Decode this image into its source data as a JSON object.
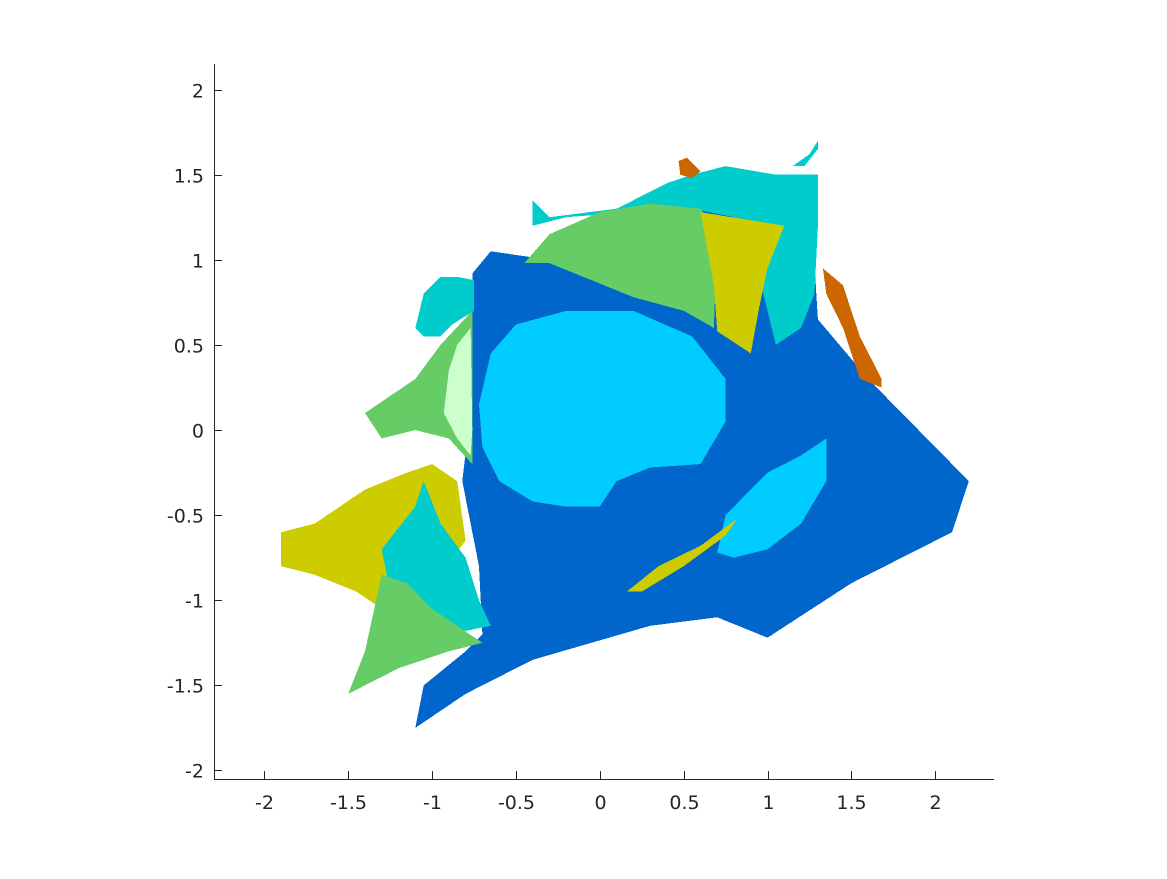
{
  "chart_data": {
    "type": "heatmap",
    "title": "",
    "xlabel": "",
    "ylabel": "",
    "xlim": [
      -2.3,
      2.35
    ],
    "ylim": [
      -2.05,
      2.15
    ],
    "grid": false,
    "x_ticks": [
      -2,
      -1.5,
      -1,
      -0.5,
      0,
      0.5,
      1,
      1.5,
      2
    ],
    "x_tick_labels": [
      "-2",
      "-1.5",
      "-1",
      "-0.5",
      "0",
      "0.5",
      "1",
      "1.5",
      "2"
    ],
    "y_ticks": [
      2,
      1.5,
      1,
      0.5,
      0,
      -0.5,
      -1,
      -1.5,
      -2
    ],
    "y_tick_labels": [
      "2",
      "1.5",
      "1",
      "0.5",
      "0",
      "-0.5",
      "-1",
      "-1.5",
      "-2"
    ],
    "regions": [
      {
        "name": "outer-blue-region",
        "color": "#0066cc",
        "points": [
          [
            -0.76,
            0.92
          ],
          [
            -0.65,
            1.05
          ],
          [
            -0.3,
            1.0
          ],
          [
            -0.1,
            1.05
          ],
          [
            0.3,
            1.25
          ],
          [
            0.7,
            1.3
          ],
          [
            1.1,
            1.25
          ],
          [
            1.25,
            1.45
          ],
          [
            1.3,
            0.65
          ],
          [
            1.6,
            0.3
          ],
          [
            2.2,
            -0.3
          ],
          [
            2.1,
            -0.6
          ],
          [
            1.5,
            -0.9
          ],
          [
            1.0,
            -1.22
          ],
          [
            0.7,
            -1.1
          ],
          [
            0.3,
            -1.15
          ],
          [
            -0.4,
            -1.35
          ],
          [
            -0.8,
            -1.55
          ],
          [
            -1.1,
            -1.75
          ],
          [
            -1.05,
            -1.5
          ],
          [
            -0.8,
            -1.3
          ],
          [
            -0.7,
            -1.2
          ],
          [
            -0.72,
            -0.8
          ],
          [
            -0.82,
            -0.3
          ],
          [
            -0.76,
            0.2
          ]
        ]
      },
      {
        "name": "central-light-blue-blob",
        "color": "#00ccff",
        "points": [
          [
            -0.65,
            0.45
          ],
          [
            -0.5,
            0.62
          ],
          [
            -0.2,
            0.7
          ],
          [
            0.2,
            0.7
          ],
          [
            0.55,
            0.55
          ],
          [
            0.75,
            0.3
          ],
          [
            0.75,
            0.05
          ],
          [
            0.6,
            -0.2
          ],
          [
            0.3,
            -0.22
          ],
          [
            0.1,
            -0.3
          ],
          [
            0.0,
            -0.45
          ],
          [
            -0.2,
            -0.45
          ],
          [
            -0.4,
            -0.42
          ],
          [
            -0.6,
            -0.3
          ],
          [
            -0.7,
            -0.1
          ],
          [
            -0.72,
            0.15
          ]
        ]
      },
      {
        "name": "lower-right-light-blue-blob",
        "color": "#00ccff",
        "points": [
          [
            0.75,
            -0.5
          ],
          [
            1.0,
            -0.25
          ],
          [
            1.2,
            -0.15
          ],
          [
            1.35,
            -0.05
          ],
          [
            1.35,
            -0.3
          ],
          [
            1.2,
            -0.55
          ],
          [
            1.0,
            -0.7
          ],
          [
            0.8,
            -0.75
          ],
          [
            0.7,
            -0.72
          ]
        ]
      },
      {
        "name": "lower-right-yellow-sliver",
        "color": "#cccc00",
        "points": [
          [
            0.16,
            -0.95
          ],
          [
            0.35,
            -0.8
          ],
          [
            0.6,
            -0.68
          ],
          [
            0.82,
            -0.52
          ],
          [
            0.75,
            -0.62
          ],
          [
            0.5,
            -0.8
          ],
          [
            0.25,
            -0.95
          ]
        ]
      },
      {
        "name": "top-cyan-band",
        "color": "#00cccc",
        "points": [
          [
            -0.4,
            1.35
          ],
          [
            -0.3,
            1.25
          ],
          [
            0.1,
            1.3
          ],
          [
            0.4,
            1.45
          ],
          [
            0.55,
            1.5
          ],
          [
            0.75,
            1.55
          ],
          [
            1.05,
            1.5
          ],
          [
            1.3,
            1.5
          ],
          [
            1.3,
            1.2
          ],
          [
            1.28,
            0.8
          ],
          [
            1.2,
            0.6
          ],
          [
            1.05,
            0.5
          ],
          [
            0.95,
            0.9
          ],
          [
            0.8,
            1.25
          ],
          [
            0.55,
            1.3
          ],
          [
            0.2,
            1.28
          ],
          [
            -0.2,
            1.25
          ],
          [
            -0.4,
            1.2
          ]
        ]
      },
      {
        "name": "top-green-region",
        "color": "#66cc66",
        "points": [
          [
            -0.45,
            0.98
          ],
          [
            -0.3,
            1.15
          ],
          [
            0.0,
            1.28
          ],
          [
            0.3,
            1.33
          ],
          [
            0.6,
            1.3
          ],
          [
            0.7,
            1.15
          ],
          [
            0.68,
            0.6
          ],
          [
            0.5,
            0.7
          ],
          [
            0.2,
            0.78
          ],
          [
            -0.3,
            0.98
          ]
        ]
      },
      {
        "name": "top-yellow-region",
        "color": "#cccc00",
        "points": [
          [
            0.6,
            1.28
          ],
          [
            1.1,
            1.2
          ],
          [
            1.0,
            0.95
          ],
          [
            0.95,
            0.72
          ],
          [
            0.9,
            0.45
          ],
          [
            0.7,
            0.58
          ],
          [
            0.68,
            0.85
          ]
        ]
      },
      {
        "name": "right-orange-edge",
        "color": "#cc6600",
        "points": [
          [
            1.33,
            0.95
          ],
          [
            1.45,
            0.85
          ],
          [
            1.55,
            0.55
          ],
          [
            1.68,
            0.3
          ],
          [
            1.68,
            0.25
          ],
          [
            1.55,
            0.3
          ],
          [
            1.45,
            0.6
          ],
          [
            1.35,
            0.8
          ]
        ]
      },
      {
        "name": "top-orange-tip",
        "color": "#cc6600",
        "points": [
          [
            0.47,
            1.58
          ],
          [
            0.52,
            1.6
          ],
          [
            0.6,
            1.52
          ],
          [
            0.55,
            1.48
          ],
          [
            0.48,
            1.5
          ]
        ]
      },
      {
        "name": "left-cyan-region",
        "color": "#00cccc",
        "points": [
          [
            -1.1,
            0.6
          ],
          [
            -1.05,
            0.8
          ],
          [
            -0.95,
            0.9
          ],
          [
            -0.85,
            0.9
          ],
          [
            -0.75,
            0.88
          ],
          [
            -0.75,
            0.7
          ],
          [
            -0.88,
            0.62
          ],
          [
            -0.95,
            0.55
          ],
          [
            -1.05,
            0.55
          ]
        ]
      },
      {
        "name": "left-green-region",
        "color": "#66cc66",
        "points": [
          [
            -1.4,
            0.1
          ],
          [
            -1.1,
            0.3
          ],
          [
            -0.95,
            0.5
          ],
          [
            -0.76,
            0.7
          ],
          [
            -0.76,
            -0.2
          ],
          [
            -0.9,
            -0.05
          ],
          [
            -1.1,
            0.0
          ],
          [
            -1.3,
            -0.05
          ]
        ]
      },
      {
        "name": "left-pale-green-lens",
        "color": "#ccffcc",
        "points": [
          [
            -0.9,
            0.35
          ],
          [
            -0.85,
            0.5
          ],
          [
            -0.77,
            0.6
          ],
          [
            -0.76,
            0.0
          ],
          [
            -0.77,
            -0.15
          ],
          [
            -0.85,
            -0.05
          ],
          [
            -0.93,
            0.1
          ]
        ]
      },
      {
        "name": "lower-left-yellow-region",
        "color": "#cccc00",
        "points": [
          [
            -1.9,
            -0.6
          ],
          [
            -1.7,
            -0.55
          ],
          [
            -1.4,
            -0.35
          ],
          [
            -1.15,
            -0.25
          ],
          [
            -1.0,
            -0.2
          ],
          [
            -0.85,
            -0.3
          ],
          [
            -0.8,
            -0.65
          ],
          [
            -1.0,
            -0.9
          ],
          [
            -1.3,
            -1.05
          ],
          [
            -1.45,
            -0.95
          ],
          [
            -1.7,
            -0.85
          ],
          [
            -1.9,
            -0.8
          ]
        ]
      },
      {
        "name": "lower-left-cyan-region",
        "color": "#00cccc",
        "points": [
          [
            -1.3,
            -0.7
          ],
          [
            -1.1,
            -0.45
          ],
          [
            -1.05,
            -0.3
          ],
          [
            -0.95,
            -0.55
          ],
          [
            -0.8,
            -0.75
          ],
          [
            -0.72,
            -1.0
          ],
          [
            -0.65,
            -1.15
          ],
          [
            -0.8,
            -1.18
          ],
          [
            -1.0,
            -1.1
          ],
          [
            -1.25,
            -0.95
          ]
        ]
      },
      {
        "name": "lower-left-green-region",
        "color": "#66cc66",
        "points": [
          [
            -1.3,
            -0.85
          ],
          [
            -1.15,
            -0.9
          ],
          [
            -1.0,
            -1.05
          ],
          [
            -0.85,
            -1.15
          ],
          [
            -0.7,
            -1.25
          ],
          [
            -0.9,
            -1.3
          ],
          [
            -1.2,
            -1.4
          ],
          [
            -1.5,
            -1.55
          ],
          [
            -1.4,
            -1.3
          ]
        ]
      },
      {
        "name": "upper-right-cyan-spike",
        "color": "#00cccc",
        "points": [
          [
            1.15,
            1.55
          ],
          [
            1.25,
            1.62
          ],
          [
            1.3,
            1.7
          ],
          [
            1.3,
            1.65
          ],
          [
            1.22,
            1.55
          ]
        ]
      }
    ]
  }
}
